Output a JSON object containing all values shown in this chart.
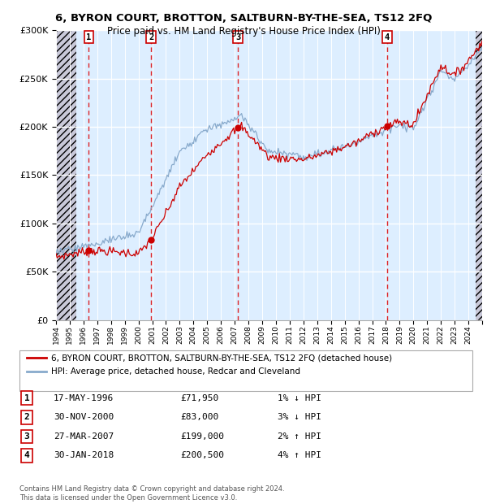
{
  "title": "6, BYRON COURT, BROTTON, SALTBURN-BY-THE-SEA, TS12 2FQ",
  "subtitle": "Price paid vs. HM Land Registry's House Price Index (HPI)",
  "transactions": [
    {
      "num": 1,
      "date": "17-MAY-1996",
      "price": 71950,
      "year": 1996.38,
      "hpi_pct": "1% ↓ HPI"
    },
    {
      "num": 2,
      "date": "30-NOV-2000",
      "price": 83000,
      "year": 2000.92,
      "hpi_pct": "3% ↓ HPI"
    },
    {
      "num": 3,
      "date": "27-MAR-2007",
      "price": 199000,
      "year": 2007.23,
      "hpi_pct": "2% ↑ HPI"
    },
    {
      "num": 4,
      "date": "30-JAN-2018",
      "price": 200500,
      "year": 2018.08,
      "hpi_pct": "4% ↑ HPI"
    }
  ],
  "legend_line1": "6, BYRON COURT, BROTTON, SALTBURN-BY-THE-SEA, TS12 2FQ (detached house)",
  "legend_line2": "HPI: Average price, detached house, Redcar and Cleveland",
  "footer1": "Contains HM Land Registry data © Crown copyright and database right 2024.",
  "footer2": "This data is licensed under the Open Government Licence v3.0.",
  "ylim": [
    0,
    300000
  ],
  "xlim_start": 1994,
  "xlim_end": 2025,
  "hatch_end": 1995.5,
  "hatch_start_right": 2024.5,
  "price_color": "#cc0000",
  "hpi_color": "#88aacc",
  "background_color": "#ddeeff",
  "hatch_color": "#c8c8d8"
}
